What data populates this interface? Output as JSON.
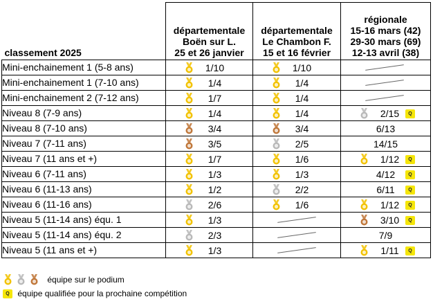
{
  "table_title": "classement 2025",
  "competitions": [
    {
      "lines": [
        "départementale",
        "Boën sur L.",
        "25 et 26 janvier"
      ]
    },
    {
      "lines": [
        "départementale",
        "Le Chambon F.",
        "15 et 16 février"
      ]
    },
    {
      "lines": [
        "régionale",
        "15-16 mars (42)",
        "29-30 mars (69)",
        "12-13 avril (38)"
      ]
    }
  ],
  "medal_colors": {
    "gold": "#f2c200",
    "silver": "#b9b9b9",
    "bronze": "#c0773a"
  },
  "qualified_color": "#f5e60a",
  "qualified_badge_text": "Q",
  "rows": [
    {
      "label": "Mini-enchainement 1 (5-8 ans)",
      "cells": [
        {
          "medal": "gold",
          "value": "1/10"
        },
        {
          "medal": "gold",
          "value": "1/10"
        },
        {
          "empty": true
        }
      ]
    },
    {
      "label": "Mini-enchainement 1 (7-10 ans)",
      "cells": [
        {
          "medal": "gold",
          "value": "1/4"
        },
        {
          "medal": "gold",
          "value": "1/4"
        },
        {
          "empty": true
        }
      ]
    },
    {
      "label": "Mini-enchainement 2 (7-12 ans)",
      "cells": [
        {
          "medal": "gold",
          "value": "1/7"
        },
        {
          "medal": "gold",
          "value": "1/4"
        },
        {
          "empty": true
        }
      ]
    },
    {
      "label": "Niveau 8 (7-9 ans)",
      "cells": [
        {
          "medal": "gold",
          "value": "1/4"
        },
        {
          "medal": "gold",
          "value": "1/4"
        },
        {
          "medal": "silver",
          "value": "2/15",
          "qualified": true
        }
      ]
    },
    {
      "label": "Niveau 8 (7-10 ans)",
      "cells": [
        {
          "medal": "bronze",
          "value": "3/4"
        },
        {
          "medal": "bronze",
          "value": "3/4"
        },
        {
          "value": "6/13"
        }
      ]
    },
    {
      "label": "Niveau 7 (7-11 ans)",
      "cells": [
        {
          "medal": "bronze",
          "value": "3/5"
        },
        {
          "medal": "silver",
          "value": "2/5"
        },
        {
          "value": "14/15"
        }
      ]
    },
    {
      "label": "Niveau 7 (11 ans et +)",
      "cells": [
        {
          "medal": "gold",
          "value": "1/7"
        },
        {
          "medal": "gold",
          "value": "1/6"
        },
        {
          "medal": "gold",
          "value": "1/12",
          "qualified": true
        }
      ]
    },
    {
      "label": "Niveau 6 (7-11 ans)",
      "cells": [
        {
          "medal": "gold",
          "value": "1/3"
        },
        {
          "medal": "gold",
          "value": "1/3"
        },
        {
          "value": "4/12",
          "qualified": true
        }
      ]
    },
    {
      "label": "Niveau 6 (11-13 ans)",
      "cells": [
        {
          "medal": "gold",
          "value": "1/2"
        },
        {
          "medal": "silver",
          "value": "2/2"
        },
        {
          "value": "6/11",
          "qualified": true
        }
      ]
    },
    {
      "label": "Niveau 6 (11-16 ans)",
      "cells": [
        {
          "medal": "silver",
          "value": "2/6"
        },
        {
          "medal": "gold",
          "value": "1/6"
        },
        {
          "medal": "gold",
          "value": "1/12",
          "qualified": true
        }
      ]
    },
    {
      "label": "Niveau 5 (11-14 ans) équ. 1",
      "cells": [
        {
          "medal": "gold",
          "value": "1/3"
        },
        {
          "empty": true
        },
        {
          "medal": "bronze",
          "value": "3/10",
          "qualified": true
        }
      ]
    },
    {
      "label": "Niveau 5 (11-14 ans) équ. 2",
      "cells": [
        {
          "medal": "silver",
          "value": "2/3"
        },
        {
          "empty": true
        },
        {
          "value": "7/9"
        }
      ]
    },
    {
      "label": "Niveau 5 (11 ans et +)",
      "cells": [
        {
          "medal": "gold",
          "value": "1/3"
        },
        {
          "empty": true
        },
        {
          "medal": "gold",
          "value": "1/11",
          "qualified": true
        }
      ]
    }
  ],
  "legend": {
    "podium_text": "équipe sur le podium",
    "qualified_text": "équipe qualifiée pour la prochaine compétition"
  }
}
